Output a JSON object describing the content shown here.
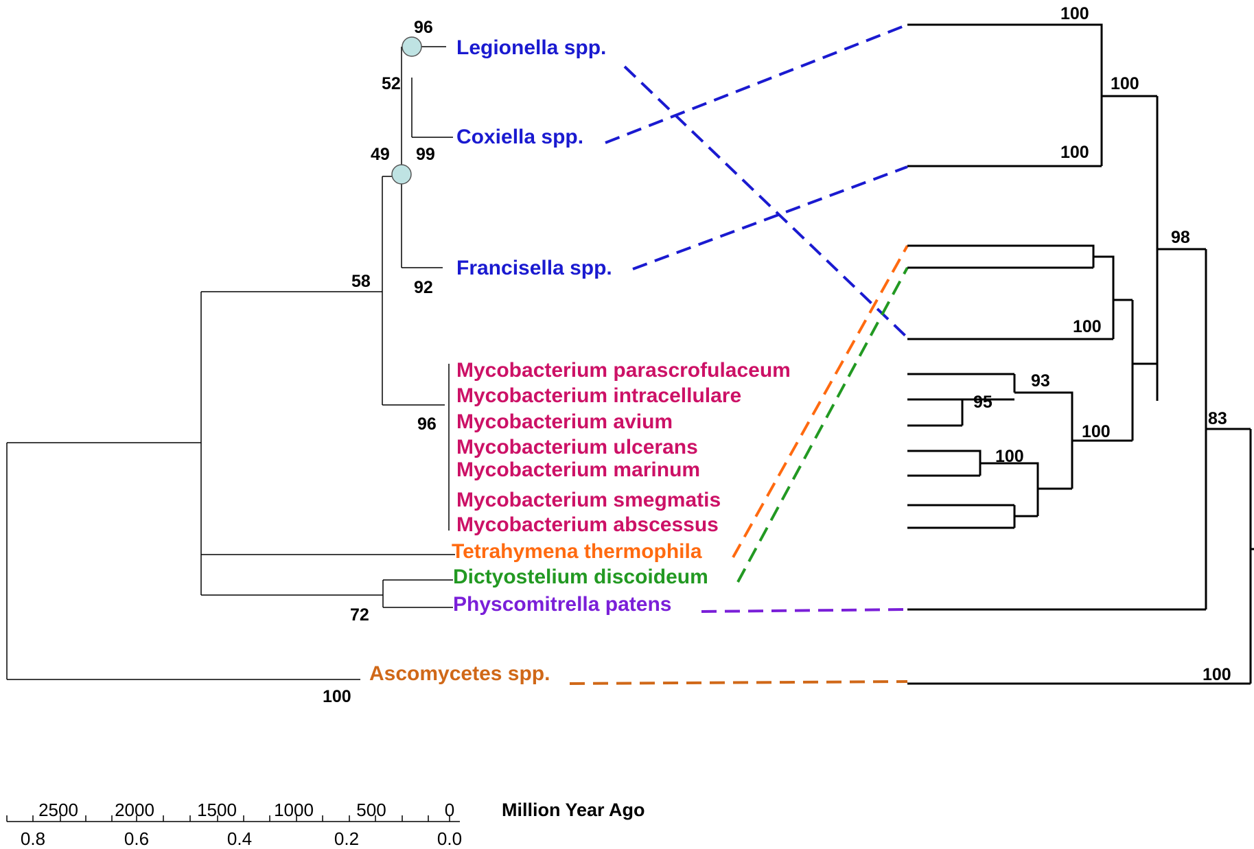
{
  "taxa": {
    "legionella": "Legionella spp.",
    "coxiella": "Coxiella spp.",
    "francisella": "Francisella spp.",
    "myco_parascrofulaceum": "Mycobacterium parascrofulaceum",
    "myco_intracellulare": "Mycobacterium intracellulare",
    "myco_avium": "Mycobacterium avium",
    "myco_ulcerans": "Mycobacterium ulcerans",
    "myco_marinum": "Mycobacterium marinum",
    "myco_smegmatis": "Mycobacterium smegmatis",
    "myco_abscessus": "Mycobacterium abscessus",
    "tetrahymena": "Tetrahymena thermophila",
    "dictyostelium": "Dictyostelium discoideum",
    "physcomitrella": "Physcomitrella patens",
    "ascomycetes": "Ascomycetes spp."
  },
  "left_tree_support": {
    "legionella": "96",
    "legio_coxiella": "52",
    "node_49": "49",
    "node_99": "99",
    "francisella": "92",
    "node_58": "58",
    "mycobacteria": "96",
    "dicty_physco": "72",
    "root": "100"
  },
  "right_tree_support": {
    "top_a": "100",
    "top_b": "100",
    "top_c": "100",
    "node_98": "98",
    "node_100_mid": "100",
    "node_93": "93",
    "node_95": "95",
    "node_100_myco": "100",
    "node_100_low": "100",
    "node_83": "83",
    "root": "100"
  },
  "axis": {
    "title": "Million Year Ago",
    "top_ticks": [
      "2500",
      "2000",
      "1500",
      "1000",
      "500",
      "0"
    ],
    "bottom_ticks": [
      "0.8",
      "0.6",
      "0.4",
      "0.2",
      "0.0"
    ]
  },
  "colors": {
    "blue": "#1a1ad0",
    "magenta": "#cc1166",
    "orange": "#ff6a10",
    "green": "#229922",
    "purple": "#7a1fd8",
    "brown": "#d06818",
    "node_circle": "#bfe3e3"
  }
}
